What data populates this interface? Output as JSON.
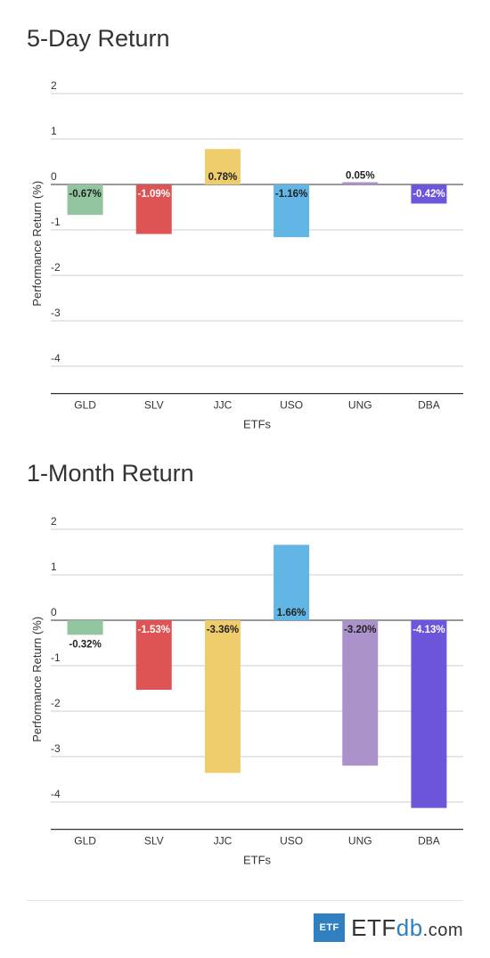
{
  "chart_data": [
    {
      "type": "bar",
      "title": "5-Day Return",
      "xlabel": "ETFs",
      "ylabel": "Performance Return (%)",
      "categories": [
        "GLD",
        "SLV",
        "JJC",
        "USO",
        "UNG",
        "DBA"
      ],
      "values": [
        -0.67,
        -1.09,
        0.78,
        -1.16,
        0.05,
        -0.42
      ],
      "value_labels": [
        "-0.67%",
        "-1.09%",
        "0.78%",
        "-1.16%",
        "0.05%",
        "-0.42%"
      ],
      "colors": [
        "#93c6a0",
        "#de5454",
        "#f0cd6c",
        "#62b6e6",
        "#ab92cb",
        "#6d55dc"
      ],
      "label_colors": [
        "#222222",
        "#ffffff",
        "#222222",
        "#222222",
        "#222222",
        "#ffffff"
      ],
      "yticks": [
        2,
        1,
        0,
        -1,
        -2,
        -3,
        -4
      ],
      "ylim": [
        -4.6,
        2
      ],
      "grid": true,
      "legend": "none"
    },
    {
      "type": "bar",
      "title": "1-Month Return",
      "xlabel": "ETFs",
      "ylabel": "Performance Return (%)",
      "categories": [
        "GLD",
        "SLV",
        "JJC",
        "USO",
        "UNG",
        "DBA"
      ],
      "values": [
        -0.32,
        -1.53,
        -3.36,
        1.66,
        -3.2,
        -4.13
      ],
      "value_labels": [
        "-0.32%",
        "-1.53%",
        "-3.36%",
        "1.66%",
        "-3.20%",
        "-4.13%"
      ],
      "colors": [
        "#93c6a0",
        "#de5454",
        "#f0cd6c",
        "#62b6e6",
        "#ab92cb",
        "#6d55dc"
      ],
      "label_colors": [
        "#222222",
        "#ffffff",
        "#222222",
        "#222222",
        "#222222",
        "#ffffff"
      ],
      "yticks": [
        2,
        1,
        0,
        -1,
        -2,
        -3,
        -4
      ],
      "ylim": [
        -4.6,
        2
      ],
      "grid": true,
      "legend": "none"
    }
  ],
  "footer": {
    "logo_box": "ETF",
    "logo_main": "ETF",
    "logo_accent": "db",
    "logo_suffix": ".com"
  }
}
